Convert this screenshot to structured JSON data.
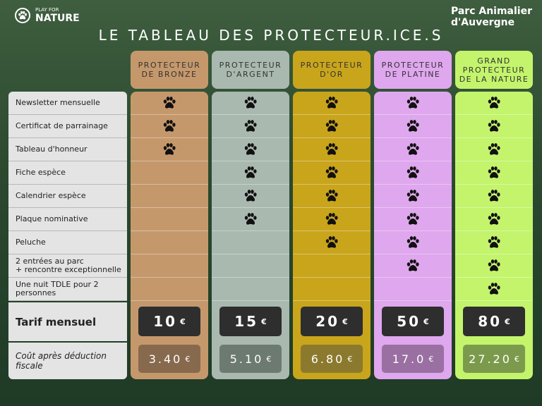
{
  "header": {
    "left_logo": {
      "top": "PLAY FOR",
      "bottom": "NATURE"
    },
    "right_logo": {
      "line1": "Parc Animalier",
      "line2": "d'Auvergne"
    },
    "title": "LE TABLEAU DES PROTECTEUR.ICE.S"
  },
  "table": {
    "tiers": [
      {
        "name_lines": [
          "PROTECTEUR",
          "DE BRONZE"
        ],
        "color": "#c5986c",
        "dark": "#87694e",
        "price": 10,
        "deduction": "3.40"
      },
      {
        "name_lines": [
          "PROTECTEUR",
          "D'ARGENT"
        ],
        "color": "#a9b9af",
        "dark": "#6d7a72",
        "price": 15,
        "deduction": "5.10"
      },
      {
        "name_lines": [
          "PROTECTEUR",
          "D'OR"
        ],
        "color": "#c9a51c",
        "dark": "#8b7a2e",
        "price": 20,
        "deduction": "6.80"
      },
      {
        "name_lines": [
          "PROTECTEUR",
          "DE PLATINE"
        ],
        "color": "#dfa7ee",
        "dark": "#9a6fa2",
        "price": 50,
        "deduction": "17.0"
      },
      {
        "name_lines": [
          "GRAND",
          "PROTECTEUR",
          "DE LA NATURE"
        ],
        "color": "#c3f46c",
        "dark": "#7c9a4b",
        "price": 80,
        "deduction": "27.20"
      }
    ],
    "currency": "€",
    "features": [
      {
        "lines": [
          "Newsletter mensuelle"
        ],
        "included": [
          true,
          true,
          true,
          true,
          true
        ]
      },
      {
        "lines": [
          "Certificat de parrainage"
        ],
        "included": [
          true,
          true,
          true,
          true,
          true
        ]
      },
      {
        "lines": [
          "Tableau d'honneur"
        ],
        "included": [
          true,
          true,
          true,
          true,
          true
        ]
      },
      {
        "lines": [
          "Fiche espèce"
        ],
        "included": [
          false,
          true,
          true,
          true,
          true
        ]
      },
      {
        "lines": [
          "Calendrier espèce"
        ],
        "included": [
          false,
          true,
          true,
          true,
          true
        ]
      },
      {
        "lines": [
          "Plaque nominative"
        ],
        "included": [
          false,
          true,
          true,
          true,
          true
        ]
      },
      {
        "lines": [
          "Peluche"
        ],
        "included": [
          false,
          false,
          true,
          true,
          true
        ]
      },
      {
        "lines": [
          "2 entrées au parc",
          "+ rencontre exceptionnelle"
        ],
        "included": [
          false,
          false,
          false,
          true,
          true
        ]
      },
      {
        "lines": [
          "Une nuit TDLE pour 2",
          "personnes"
        ],
        "included": [
          false,
          false,
          false,
          false,
          true
        ]
      }
    ],
    "price_label": "Tarif mensuel",
    "deduction_label_lines": [
      "Coût après déduction",
      "fiscale"
    ]
  }
}
